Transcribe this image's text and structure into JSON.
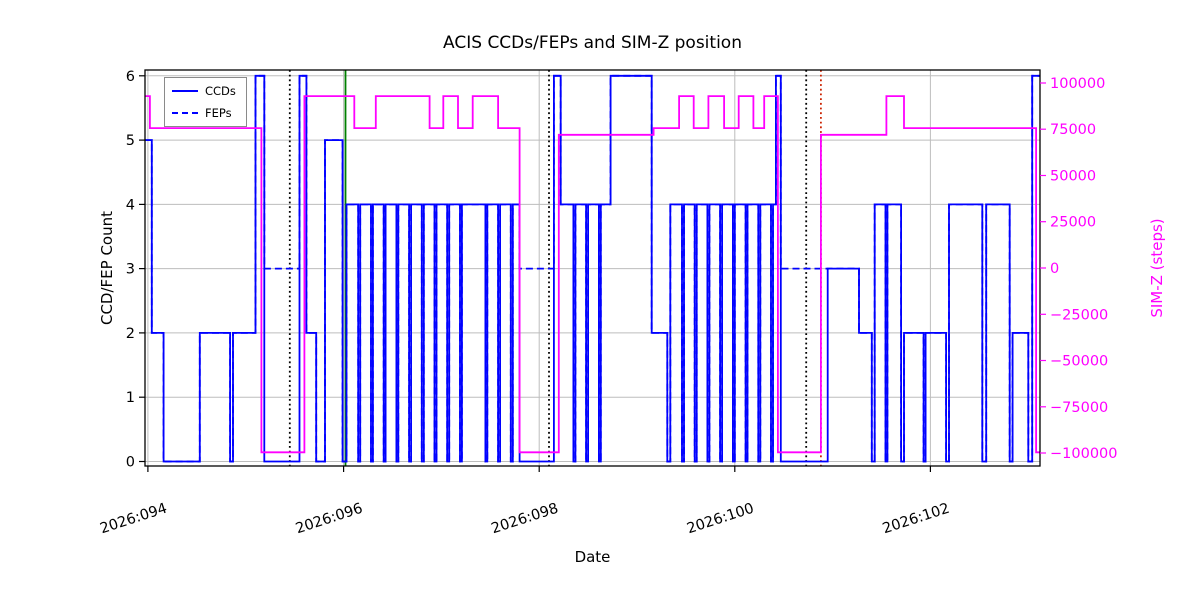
{
  "figure": {
    "title": "ACIS CCDs/FEPs and SIM-Z position",
    "xlabel": "Date",
    "ylabel_left": "CCD/FEP Count",
    "ylabel_right": "SIM-Z (steps)"
  },
  "legend": {
    "items": [
      {
        "label": "CCDs",
        "line_style": "solid"
      },
      {
        "label": "FEPs",
        "line_style": "dashed"
      }
    ]
  },
  "colors": {
    "ccd_line": "#0000ff",
    "fep_line": "#0000ff",
    "simz_line": "#ff00ff",
    "grid": "#bdbdbd",
    "axis": "#000000",
    "vline_black": "#000000",
    "vline_green": "#008000",
    "vline_red": "#cc2200"
  },
  "chart_data": {
    "type": "line",
    "title": "ACIS CCDs/FEPs and SIM-Z position",
    "xlabel": "Date",
    "grid": true,
    "legend_position": "upper-left",
    "x_axis": {
      "lim": [
        93.97,
        103.12
      ],
      "tick_values": [
        94,
        96,
        98,
        100,
        102
      ],
      "tick_labels": [
        "2026:094",
        "2026:096",
        "2026:098",
        "2026:100",
        "2026:102"
      ]
    },
    "left_axis": {
      "label": "CCD/FEP Count",
      "lim": [
        -0.07,
        6.09
      ],
      "tick_values": [
        0,
        1,
        2,
        3,
        4,
        5,
        6
      ],
      "tick_labels": [
        "0",
        "1",
        "2",
        "3",
        "4",
        "5",
        "6"
      ]
    },
    "right_axis": {
      "label": "SIM-Z (steps)",
      "lim": [
        -107000,
        107000
      ],
      "tick_values": [
        100000,
        75000,
        50000,
        25000,
        0,
        -25000,
        -50000,
        -75000,
        -100000
      ],
      "tick_labels": [
        "100000",
        "75000",
        "50000",
        "25000",
        "0",
        "−25000",
        "−50000",
        "−75000",
        "−100000"
      ]
    },
    "series": [
      {
        "name": "CCDs",
        "axis": "left",
        "color": "#0000ff",
        "dash": "solid",
        "step": true,
        "points": [
          [
            93.97,
            5
          ],
          [
            94.04,
            2
          ],
          [
            94.16,
            0
          ],
          [
            94.53,
            2
          ],
          [
            94.84,
            0
          ],
          [
            94.87,
            2
          ],
          [
            95.1,
            6
          ],
          [
            95.19,
            0
          ],
          [
            95.55,
            6
          ],
          [
            95.62,
            2
          ],
          [
            95.72,
            0
          ],
          [
            95.81,
            5
          ],
          [
            95.99,
            0
          ],
          [
            96.03,
            4
          ],
          [
            96.15,
            0
          ],
          [
            96.17,
            4
          ],
          [
            96.28,
            0
          ],
          [
            96.3,
            4
          ],
          [
            96.41,
            0
          ],
          [
            96.43,
            4
          ],
          [
            96.54,
            0
          ],
          [
            96.56,
            4
          ],
          [
            96.67,
            0
          ],
          [
            96.69,
            4
          ],
          [
            96.8,
            0
          ],
          [
            96.82,
            4
          ],
          [
            96.93,
            0
          ],
          [
            96.95,
            4
          ],
          [
            97.06,
            0
          ],
          [
            97.08,
            4
          ],
          [
            97.19,
            0
          ],
          [
            97.21,
            4
          ],
          [
            97.45,
            0
          ],
          [
            97.47,
            4
          ],
          [
            97.58,
            0
          ],
          [
            97.6,
            4
          ],
          [
            97.71,
            0
          ],
          [
            97.73,
            4
          ],
          [
            97.8,
            0
          ],
          [
            98.15,
            6
          ],
          [
            98.22,
            4
          ],
          [
            98.35,
            0
          ],
          [
            98.37,
            4
          ],
          [
            98.48,
            0
          ],
          [
            98.5,
            4
          ],
          [
            98.61,
            0
          ],
          [
            98.63,
            4
          ],
          [
            98.73,
            6
          ],
          [
            99.15,
            2
          ],
          [
            99.31,
            0
          ],
          [
            99.34,
            4
          ],
          [
            99.46,
            0
          ],
          [
            99.48,
            4
          ],
          [
            99.59,
            0
          ],
          [
            99.61,
            4
          ],
          [
            99.72,
            0
          ],
          [
            99.74,
            4
          ],
          [
            99.85,
            0
          ],
          [
            99.87,
            4
          ],
          [
            99.98,
            0
          ],
          [
            100.0,
            4
          ],
          [
            100.11,
            0
          ],
          [
            100.13,
            4
          ],
          [
            100.24,
            0
          ],
          [
            100.26,
            4
          ],
          [
            100.37,
            0
          ],
          [
            100.39,
            4
          ],
          [
            100.42,
            6
          ],
          [
            100.47,
            0
          ],
          [
            100.95,
            3
          ],
          [
            101.27,
            2
          ],
          [
            101.4,
            0
          ],
          [
            101.43,
            4
          ],
          [
            101.54,
            0
          ],
          [
            101.56,
            4
          ],
          [
            101.7,
            0
          ],
          [
            101.73,
            2
          ],
          [
            101.93,
            0
          ],
          [
            101.95,
            2
          ],
          [
            102.16,
            0
          ],
          [
            102.19,
            4
          ],
          [
            102.53,
            0
          ],
          [
            102.57,
            4
          ],
          [
            102.81,
            0
          ],
          [
            102.84,
            2
          ],
          [
            103.0,
            0
          ],
          [
            103.04,
            6
          ]
        ]
      },
      {
        "name": "FEPs",
        "axis": "left",
        "color": "#0000ff",
        "dash": "dashed",
        "step": true,
        "points": [
          [
            93.97,
            5
          ],
          [
            94.04,
            2
          ],
          [
            94.16,
            0
          ],
          [
            94.53,
            2
          ],
          [
            94.84,
            0
          ],
          [
            94.87,
            2
          ],
          [
            95.1,
            6
          ],
          [
            95.19,
            3
          ],
          [
            95.55,
            6
          ],
          [
            95.62,
            2
          ],
          [
            95.72,
            0
          ],
          [
            95.81,
            5
          ],
          [
            95.99,
            0
          ],
          [
            96.03,
            4
          ],
          [
            96.15,
            0
          ],
          [
            96.17,
            4
          ],
          [
            96.28,
            0
          ],
          [
            96.3,
            4
          ],
          [
            96.41,
            0
          ],
          [
            96.43,
            4
          ],
          [
            96.54,
            0
          ],
          [
            96.56,
            4
          ],
          [
            96.67,
            0
          ],
          [
            96.69,
            4
          ],
          [
            96.8,
            0
          ],
          [
            96.82,
            4
          ],
          [
            96.93,
            0
          ],
          [
            96.95,
            4
          ],
          [
            97.06,
            0
          ],
          [
            97.08,
            4
          ],
          [
            97.19,
            0
          ],
          [
            97.21,
            4
          ],
          [
            97.45,
            0
          ],
          [
            97.47,
            4
          ],
          [
            97.58,
            0
          ],
          [
            97.6,
            4
          ],
          [
            97.71,
            0
          ],
          [
            97.73,
            4
          ],
          [
            97.8,
            3
          ],
          [
            98.15,
            6
          ],
          [
            98.22,
            4
          ],
          [
            98.35,
            0
          ],
          [
            98.37,
            4
          ],
          [
            98.48,
            0
          ],
          [
            98.5,
            4
          ],
          [
            98.61,
            0
          ],
          [
            98.63,
            4
          ],
          [
            98.73,
            6
          ],
          [
            99.15,
            2
          ],
          [
            99.31,
            0
          ],
          [
            99.34,
            4
          ],
          [
            99.46,
            0
          ],
          [
            99.48,
            4
          ],
          [
            99.59,
            0
          ],
          [
            99.61,
            4
          ],
          [
            99.72,
            0
          ],
          [
            99.74,
            4
          ],
          [
            99.85,
            0
          ],
          [
            99.87,
            4
          ],
          [
            99.98,
            0
          ],
          [
            100.0,
            4
          ],
          [
            100.11,
            0
          ],
          [
            100.13,
            4
          ],
          [
            100.24,
            0
          ],
          [
            100.26,
            4
          ],
          [
            100.37,
            0
          ],
          [
            100.39,
            4
          ],
          [
            100.42,
            6
          ],
          [
            100.47,
            3
          ],
          [
            101.27,
            2
          ],
          [
            101.4,
            0
          ],
          [
            101.43,
            4
          ],
          [
            101.54,
            0
          ],
          [
            101.56,
            4
          ],
          [
            101.7,
            0
          ],
          [
            101.73,
            2
          ],
          [
            101.93,
            0
          ],
          [
            101.95,
            2
          ],
          [
            102.16,
            0
          ],
          [
            102.19,
            4
          ],
          [
            102.53,
            0
          ],
          [
            102.57,
            4
          ],
          [
            102.81,
            0
          ],
          [
            102.84,
            2
          ],
          [
            103.0,
            0
          ],
          [
            103.04,
            6
          ]
        ]
      },
      {
        "name": "SIM-Z",
        "axis": "right",
        "color": "#ff00ff",
        "dash": "solid",
        "step": true,
        "points": [
          [
            93.97,
            92903
          ],
          [
            94.02,
            75624
          ],
          [
            95.16,
            -99612
          ],
          [
            95.6,
            92903
          ],
          [
            96.11,
            75624
          ],
          [
            96.33,
            92903
          ],
          [
            96.88,
            75624
          ],
          [
            97.02,
            92903
          ],
          [
            97.17,
            75624
          ],
          [
            97.32,
            92903
          ],
          [
            97.58,
            75624
          ],
          [
            97.8,
            -99612
          ],
          [
            98.2,
            72000
          ],
          [
            99.17,
            75624
          ],
          [
            99.43,
            92903
          ],
          [
            99.58,
            75624
          ],
          [
            99.73,
            92903
          ],
          [
            99.89,
            75624
          ],
          [
            100.04,
            92903
          ],
          [
            100.19,
            75624
          ],
          [
            100.3,
            92903
          ],
          [
            100.44,
            -99612
          ],
          [
            100.88,
            72000
          ],
          [
            101.55,
            92903
          ],
          [
            101.73,
            75624
          ],
          [
            103.08,
            -99612
          ]
        ]
      }
    ],
    "vlines": [
      {
        "x": 95.45,
        "color": "#000000",
        "dash": "dotted"
      },
      {
        "x": 96.02,
        "color": "#008000",
        "dash": "solid"
      },
      {
        "x": 98.1,
        "color": "#000000",
        "dash": "dotted"
      },
      {
        "x": 100.73,
        "color": "#000000",
        "dash": "dotted"
      },
      {
        "x": 100.88,
        "color": "#cc2200",
        "dash": "dotted"
      }
    ]
  }
}
